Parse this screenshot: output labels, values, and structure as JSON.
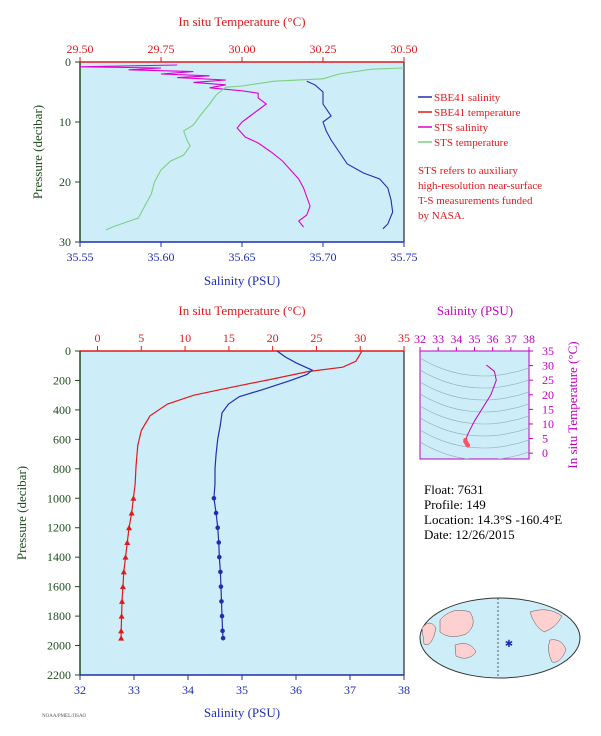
{
  "colors": {
    "plot_bg": "#cdeef9",
    "salinity": "#1f2fb0",
    "temperature": "#e01a1a",
    "sts_salinity": "#e000d0",
    "sts_temperature": "#7ed07e",
    "pressure_axis": "#1e4d1e",
    "ts_accent": "#c000c0"
  },
  "chart_data": [
    {
      "id": "near_surface",
      "type": "line",
      "top_axis_label": "In situ Temperature (°C)",
      "bottom_axis_label": "Salinity (PSU)",
      "left_axis_label": "Pressure (decibar)",
      "top_ticks": [
        "29.50",
        "29.75",
        "30.00",
        "30.25",
        "30.50"
      ],
      "bottom_ticks": [
        "35.55",
        "35.60",
        "35.65",
        "35.70",
        "35.75"
      ],
      "left_ticks": [
        "0",
        "10",
        "20",
        "30"
      ],
      "temp_range": [
        29.5,
        30.5
      ],
      "sal_range": [
        35.55,
        35.75
      ],
      "pressure_range": [
        0,
        30
      ],
      "legend": [
        "SBE41 salinity",
        "SBE41 temperature",
        "STS salinity",
        "STS temperature"
      ],
      "note": [
        "STS refers to auxiliary",
        "high-resolution near-surface",
        "T-S measurements funded",
        "by NASA."
      ],
      "series": [
        {
          "name": "SBE41 salinity",
          "axis": "salinity",
          "points": [
            [
              35.69,
              3.2
            ],
            [
              35.695,
              3.8
            ],
            [
              35.7,
              5
            ],
            [
              35.7,
              7
            ],
            [
              35.705,
              9
            ],
            [
              35.7,
              10
            ],
            [
              35.702,
              11.5
            ],
            [
              35.705,
              13
            ],
            [
              35.71,
              15
            ],
            [
              35.715,
              17
            ],
            [
              35.725,
              18.5
            ],
            [
              35.735,
              19.5
            ],
            [
              35.74,
              21
            ],
            [
              35.742,
              23
            ],
            [
              35.743,
              25
            ],
            [
              35.74,
              27
            ],
            [
              35.737,
              27.8
            ]
          ]
        },
        {
          "name": "SBE41 temperature",
          "axis": "temperature",
          "points": []
        },
        {
          "name": "STS salinity",
          "axis": "salinity",
          "points": [
            [
              35.61,
              0.5
            ],
            [
              35.54,
              0.8
            ],
            [
              35.6,
              1
            ],
            [
              35.58,
              1.3
            ],
            [
              35.62,
              1.6
            ],
            [
              35.6,
              2
            ],
            [
              35.63,
              2.3
            ],
            [
              35.61,
              2.6
            ],
            [
              35.64,
              3
            ],
            [
              35.62,
              3.4
            ],
            [
              35.64,
              3.8
            ],
            [
              35.63,
              4.3
            ],
            [
              35.65,
              4.8
            ],
            [
              35.66,
              5.2
            ],
            [
              35.66,
              6
            ],
            [
              35.665,
              7
            ],
            [
              35.66,
              8
            ],
            [
              35.655,
              9
            ],
            [
              35.65,
              10
            ],
            [
              35.647,
              11
            ],
            [
              35.652,
              12.5
            ],
            [
              35.66,
              13.5
            ],
            [
              35.668,
              15
            ],
            [
              35.675,
              16.5
            ],
            [
              35.68,
              18
            ],
            [
              35.685,
              19.5
            ],
            [
              35.688,
              21
            ],
            [
              35.69,
              22.5
            ],
            [
              35.692,
              24
            ],
            [
              35.69,
              25.5
            ],
            [
              35.685,
              26.5
            ],
            [
              35.688,
              27.5
            ]
          ]
        },
        {
          "name": "STS temperature",
          "axis": "temperature",
          "points": [
            [
              30.5,
              1
            ],
            [
              30.4,
              1.2
            ],
            [
              30.3,
              2
            ],
            [
              30.25,
              2.8
            ],
            [
              30.1,
              3.2
            ],
            [
              30.0,
              4
            ],
            [
              29.95,
              4.2
            ],
            [
              29.92,
              5.5
            ],
            [
              29.9,
              7
            ],
            [
              29.87,
              9
            ],
            [
              29.85,
              10.5
            ],
            [
              29.82,
              11.5
            ],
            [
              29.83,
              13
            ],
            [
              29.84,
              14
            ],
            [
              29.82,
              15.5
            ],
            [
              29.78,
              16.5
            ],
            [
              29.75,
              18
            ],
            [
              29.73,
              20
            ],
            [
              29.72,
              22
            ],
            [
              29.7,
              24
            ],
            [
              29.68,
              26
            ],
            [
              29.6,
              27.5
            ],
            [
              29.58,
              28
            ]
          ]
        }
      ]
    },
    {
      "id": "full_profile",
      "type": "line",
      "top_axis_label": "In situ Temperature (°C)",
      "bottom_axis_label": "Salinity (PSU)",
      "left_axis_label": "Pressure (decibar)",
      "top_ticks": [
        "0",
        "5",
        "10",
        "15",
        "20",
        "25",
        "30",
        "35"
      ],
      "bottom_ticks": [
        "32",
        "33",
        "34",
        "35",
        "36",
        "37",
        "38"
      ],
      "left_ticks": [
        "0",
        "200",
        "400",
        "600",
        "800",
        "1000",
        "1200",
        "1400",
        "1600",
        "1800",
        "2000",
        "2200"
      ],
      "temp_range": [
        -2,
        35
      ],
      "sal_range": [
        32,
        38
      ],
      "pressure_range": [
        0,
        2200
      ],
      "series": [
        {
          "name": "temperature",
          "axis": "temperature",
          "points": [
            [
              30.2,
              0
            ],
            [
              29.9,
              30
            ],
            [
              29.5,
              70
            ],
            [
              28,
              110
            ],
            [
              24,
              140
            ],
            [
              20,
              190
            ],
            [
              15,
              250
            ],
            [
              11,
              300
            ],
            [
              8,
              360
            ],
            [
              6,
              440
            ],
            [
              5,
              540
            ],
            [
              4.6,
              640
            ],
            [
              4.4,
              780
            ],
            [
              4.3,
              900
            ],
            [
              4.1,
              1000
            ],
            [
              3.9,
              1100
            ],
            [
              3.6,
              1200
            ],
            [
              3.4,
              1300
            ],
            [
              3.2,
              1400
            ],
            [
              3.0,
              1500
            ],
            [
              2.9,
              1600
            ],
            [
              2.8,
              1700
            ],
            [
              2.75,
              1800
            ],
            [
              2.7,
              1900
            ],
            [
              2.7,
              1950
            ]
          ]
        },
        {
          "name": "salinity",
          "axis": "salinity",
          "points": [
            [
              35.65,
              0
            ],
            [
              35.8,
              40
            ],
            [
              36.0,
              80
            ],
            [
              36.3,
              130
            ],
            [
              36.2,
              160
            ],
            [
              35.9,
              200
            ],
            [
              35.4,
              260
            ],
            [
              34.95,
              310
            ],
            [
              34.75,
              360
            ],
            [
              34.63,
              420
            ],
            [
              34.6,
              500
            ],
            [
              34.55,
              600
            ],
            [
              34.52,
              700
            ],
            [
              34.5,
              800
            ],
            [
              34.5,
              900
            ],
            [
              34.48,
              1000
            ],
            [
              34.52,
              1100
            ],
            [
              34.55,
              1200
            ],
            [
              34.57,
              1300
            ],
            [
              34.58,
              1400
            ],
            [
              34.6,
              1500
            ],
            [
              34.61,
              1600
            ],
            [
              34.62,
              1700
            ],
            [
              34.63,
              1800
            ],
            [
              34.64,
              1900
            ],
            [
              34.65,
              1950
            ]
          ]
        }
      ]
    },
    {
      "id": "ts_diagram",
      "type": "line",
      "top_axis_label": "Salinity (PSU)",
      "right_axis_label": "In situ Temperature (°C)",
      "top_ticks": [
        "32",
        "33",
        "34",
        "35",
        "36",
        "37",
        "38"
      ],
      "right_ticks": [
        "0",
        "5",
        "10",
        "15",
        "20",
        "25",
        "30",
        "35"
      ],
      "sal_range": [
        32,
        38
      ],
      "temp_range": [
        -2,
        35
      ],
      "series": [
        {
          "name": "T-S",
          "points": [
            [
              35.65,
              30.2
            ],
            [
              35.8,
              29.5
            ],
            [
              36.1,
              28
            ],
            [
              36.2,
              25
            ],
            [
              35.9,
              20
            ],
            [
              35.4,
              15
            ],
            [
              35,
              11
            ],
            [
              34.75,
              8
            ],
            [
              34.6,
              6
            ],
            [
              34.55,
              5
            ],
            [
              34.5,
              4.5
            ],
            [
              34.5,
              4
            ],
            [
              34.55,
              3.5
            ],
            [
              34.6,
              3
            ],
            [
              34.64,
              2.7
            ]
          ]
        }
      ]
    }
  ],
  "float_info": {
    "float": "Float:  7631",
    "profile": "Profile:  149",
    "location": "Location:  14.3°S  -160.4°E",
    "date": "Date:  12/26/2015"
  },
  "map_marker": {
    "lat": -14.3,
    "lon": -160.4
  },
  "footer_text": "NOAA/PMEL/JISAO"
}
